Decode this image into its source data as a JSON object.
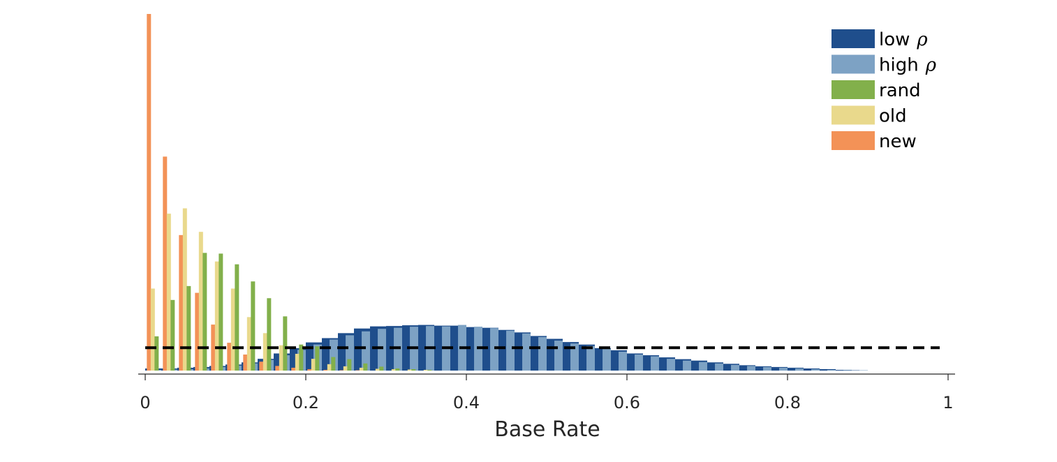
{
  "chart_data": {
    "type": "bar",
    "title": "",
    "xlabel": "Base Rate",
    "ylabel": "",
    "xlim": [
      0,
      1
    ],
    "ylim": [
      0,
      1
    ],
    "xticks": [
      "0",
      "0.2",
      "0.4",
      "0.6",
      "0.8",
      "1"
    ],
    "xtick_values": [
      0,
      0.2,
      0.4,
      0.6,
      0.8,
      1
    ],
    "bin_width": 0.02,
    "grid": false,
    "legend_position": "top-right",
    "reference_line": {
      "style": "dashed",
      "color": "#000000",
      "y": 0.064
    },
    "series": [
      {
        "key": "low",
        "name": "low",
        "symbol": "ρ",
        "color": "#1f4e8c",
        "x": [
          0.0,
          0.02,
          0.04,
          0.06,
          0.08,
          0.1,
          0.12,
          0.14,
          0.16,
          0.18,
          0.2,
          0.22,
          0.24,
          0.26,
          0.28,
          0.3,
          0.32,
          0.34,
          0.36,
          0.38,
          0.4,
          0.42,
          0.44,
          0.46,
          0.48,
          0.5,
          0.52,
          0.54,
          0.56,
          0.58,
          0.6,
          0.62,
          0.64,
          0.66,
          0.68,
          0.7,
          0.72,
          0.74,
          0.76,
          0.78,
          0.8,
          0.82,
          0.84,
          0.86,
          0.88
        ],
        "values": [
          0.006,
          0.006,
          0.008,
          0.01,
          0.013,
          0.017,
          0.023,
          0.033,
          0.048,
          0.063,
          0.079,
          0.091,
          0.105,
          0.118,
          0.124,
          0.125,
          0.127,
          0.128,
          0.126,
          0.126,
          0.122,
          0.12,
          0.114,
          0.107,
          0.097,
          0.089,
          0.08,
          0.073,
          0.063,
          0.057,
          0.048,
          0.043,
          0.037,
          0.032,
          0.028,
          0.023,
          0.019,
          0.015,
          0.012,
          0.01,
          0.008,
          0.006,
          0.004,
          0.002,
          0.001
        ]
      },
      {
        "key": "high",
        "name": "high",
        "symbol": "ρ",
        "color": "#7da2c4",
        "x": [
          0.0,
          0.02,
          0.04,
          0.06,
          0.08,
          0.1,
          0.12,
          0.14,
          0.16,
          0.18,
          0.2,
          0.22,
          0.24,
          0.26,
          0.28,
          0.3,
          0.32,
          0.34,
          0.36,
          0.38,
          0.4,
          0.42,
          0.44,
          0.46,
          0.48,
          0.5,
          0.52,
          0.54,
          0.56,
          0.58,
          0.6,
          0.62,
          0.64,
          0.66,
          0.68,
          0.7,
          0.72,
          0.74,
          0.76,
          0.78,
          0.8,
          0.82,
          0.84,
          0.86,
          0.88
        ],
        "values": [
          0.002,
          0.003,
          0.004,
          0.006,
          0.01,
          0.014,
          0.02,
          0.03,
          0.043,
          0.058,
          0.073,
          0.087,
          0.099,
          0.11,
          0.117,
          0.12,
          0.123,
          0.125,
          0.124,
          0.128,
          0.123,
          0.119,
          0.112,
          0.104,
          0.094,
          0.084,
          0.076,
          0.069,
          0.061,
          0.053,
          0.045,
          0.04,
          0.033,
          0.028,
          0.024,
          0.02,
          0.016,
          0.013,
          0.01,
          0.008,
          0.006,
          0.004,
          0.002,
          0.001,
          0.001
        ]
      },
      {
        "key": "rand",
        "name": "rand",
        "symbol": "",
        "color": "#82b04b",
        "x": [
          0.0,
          0.02,
          0.04,
          0.06,
          0.08,
          0.1,
          0.12,
          0.14,
          0.16,
          0.18,
          0.2,
          0.22,
          0.24,
          0.26,
          0.28,
          0.3,
          0.32,
          0.34
        ],
        "values": [
          0.096,
          0.198,
          0.237,
          0.33,
          0.328,
          0.298,
          0.25,
          0.203,
          0.152,
          0.073,
          0.068,
          0.038,
          0.032,
          0.02,
          0.011,
          0.006,
          0.004,
          0.002
        ]
      },
      {
        "key": "old",
        "name": "old",
        "symbol": "",
        "color": "#e9d98c",
        "x": [
          0.0,
          0.02,
          0.04,
          0.06,
          0.08,
          0.1,
          0.12,
          0.14,
          0.16,
          0.18,
          0.2,
          0.22,
          0.24,
          0.26,
          0.28,
          0.3,
          0.32,
          0.34
        ],
        "values": [
          0.23,
          0.44,
          0.455,
          0.389,
          0.306,
          0.23,
          0.15,
          0.105,
          0.071,
          0.047,
          0.033,
          0.018,
          0.012,
          0.008,
          0.005,
          0.004,
          0.003,
          0.002
        ]
      },
      {
        "key": "new",
        "name": "new",
        "symbol": "",
        "color": "#f39257",
        "x": [
          0.0,
          0.02,
          0.04,
          0.06,
          0.08,
          0.1,
          0.12,
          0.14,
          0.16,
          0.18,
          0.2,
          0.22,
          0.24,
          0.26,
          0.28,
          0.3,
          0.32,
          0.34
        ],
        "values": [
          1.0,
          0.6,
          0.38,
          0.218,
          0.129,
          0.078,
          0.045,
          0.025,
          0.013,
          0.008,
          0.004,
          0.002,
          0.001,
          0.001,
          0.0,
          0.0,
          0.0,
          0.0
        ]
      }
    ]
  }
}
